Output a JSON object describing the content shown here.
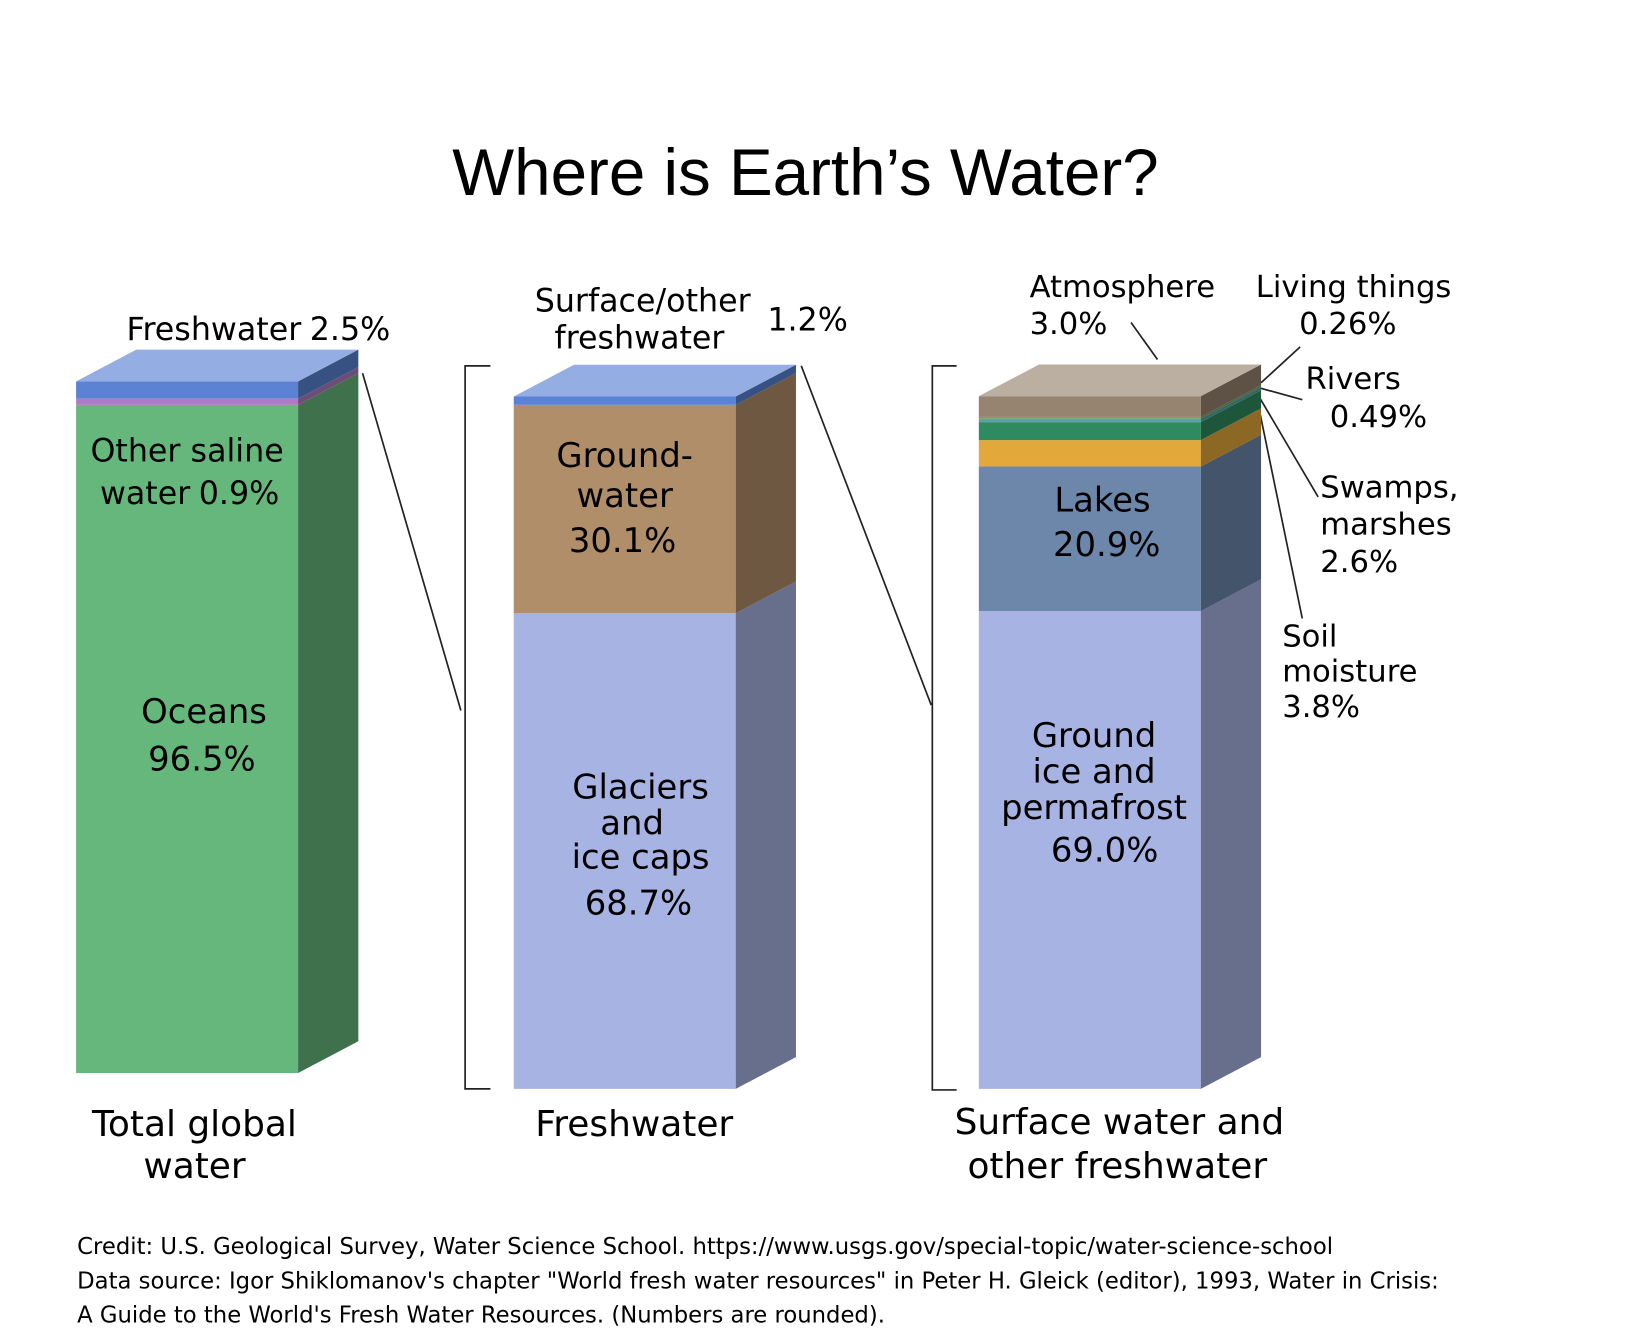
{
  "chart_data": {
    "type": "stacked-bar-3d",
    "title": "Where is Earth’s Water?",
    "ylim": [
      0,
      100
    ],
    "columns": [
      {
        "label": "Total global\nwater",
        "segments": [
          {
            "name": "Oceans",
            "value": 96.5,
            "value_label": "96.5%",
            "color": "#66b77b"
          },
          {
            "name": "Other saline\nwater",
            "value": 0.9,
            "value_label": "0.9%",
            "color": "#b07cc0"
          },
          {
            "name": "Freshwater",
            "value": 2.5,
            "value_label": "2.5%",
            "color": "#5b82d4"
          }
        ]
      },
      {
        "label": "Freshwater",
        "segments": [
          {
            "name": "Glaciers\nand\nice caps",
            "value": 68.7,
            "value_label": "68.7%",
            "color": "#a6b3e3"
          },
          {
            "name": "Ground-\nwater",
            "value": 30.1,
            "value_label": "30.1%",
            "color": "#b18e6a"
          },
          {
            "name": "Surface/other\nfreshwater",
            "value": 1.2,
            "value_label": "1.2%",
            "color": "#5b82d4"
          }
        ]
      },
      {
        "label": "Surface water and\nother freshwater",
        "segments": [
          {
            "name": "Ground\nice and\npermafrost",
            "value": 69.0,
            "value_label": "69.0%",
            "color": "#a6b3e3"
          },
          {
            "name": "Lakes",
            "value": 20.9,
            "value_label": "20.9%",
            "color": "#6d87ab"
          },
          {
            "name": "Soil\nmoisture",
            "value": 3.8,
            "value_label": "3.8%",
            "color": "#e3a83a"
          },
          {
            "name": "Swamps,\nmarshes",
            "value": 2.6,
            "value_label": "2.6%",
            "color": "#2e8a5f"
          },
          {
            "name": "Rivers",
            "value": 0.49,
            "value_label": "0.49%",
            "color": "#4fa8a3"
          },
          {
            "name": "Living things",
            "value": 0.26,
            "value_label": "0.26%",
            "color": "#7c9e60"
          },
          {
            "name": "Atmosphere",
            "value": 3.0,
            "value_label": "3.0%",
            "color": "#968470"
          }
        ]
      }
    ]
  },
  "footer": [
    "Credit: U.S. Geological Survey, Water Science School. https://www.usgs.gov/special-topic/water-science-school",
    "Data source: Igor Shiklomanov's chapter \"World fresh water resources\" in Peter H. Gleick (editor), 1993, Water in Crisis:",
    "A Guide to the World's Fresh Water Resources. (Numbers are rounded)."
  ]
}
